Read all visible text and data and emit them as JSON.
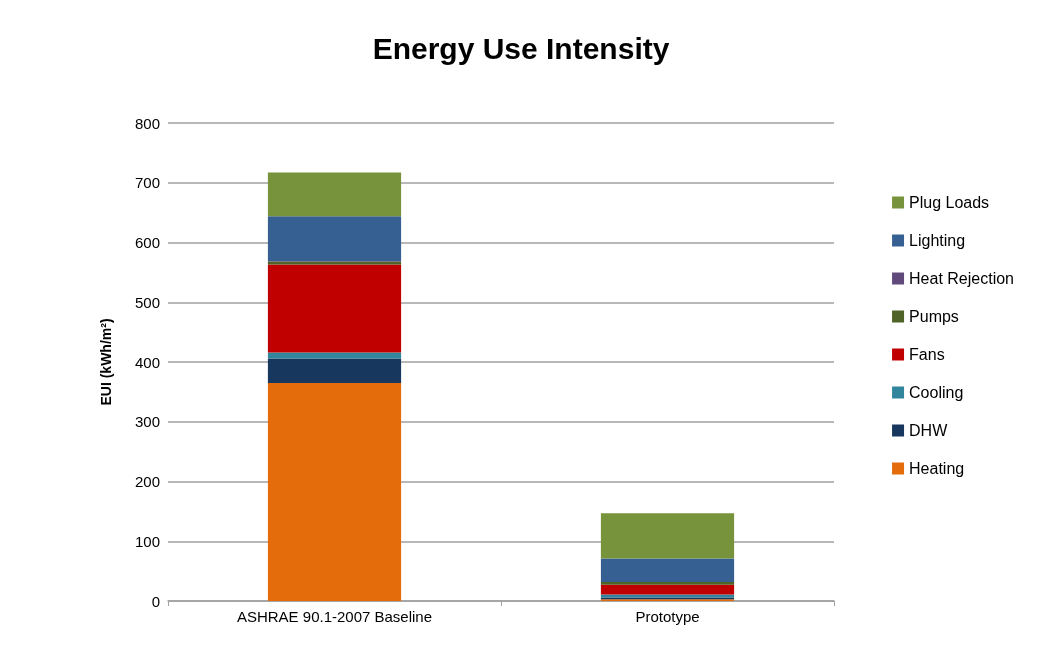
{
  "chart_data": {
    "type": "bar",
    "title": "Energy Use Intensity",
    "ylabel": "EUI (kWh/m²)",
    "categories": [
      "ASHRAE 90.1-2007 Baseline",
      "Prototype"
    ],
    "stacked": true,
    "series": [
      {
        "name": "Heating",
        "color": "#e46c0a",
        "values": [
          365,
          3
        ]
      },
      {
        "name": "DHW",
        "color": "#17375e",
        "values": [
          41,
          3
        ]
      },
      {
        "name": "Cooling",
        "color": "#31859c",
        "values": [
          10,
          5
        ]
      },
      {
        "name": "Fans",
        "color": "#c00000",
        "values": [
          147,
          16
        ]
      },
      {
        "name": "Pumps",
        "color": "#4f6228",
        "values": [
          5,
          5
        ]
      },
      {
        "name": "Heat Rejection",
        "color": "#604a7b",
        "values": [
          1,
          0
        ]
      },
      {
        "name": "Lighting",
        "color": "#376092",
        "values": [
          75,
          39
        ]
      },
      {
        "name": "Plug Loads",
        "color": "#77933c",
        "values": [
          73,
          76
        ]
      }
    ],
    "ylim": [
      0,
      800
    ],
    "yticks": [
      0,
      100,
      200,
      300,
      400,
      500,
      600,
      700,
      800
    ],
    "grid": "y",
    "legend": "right"
  }
}
